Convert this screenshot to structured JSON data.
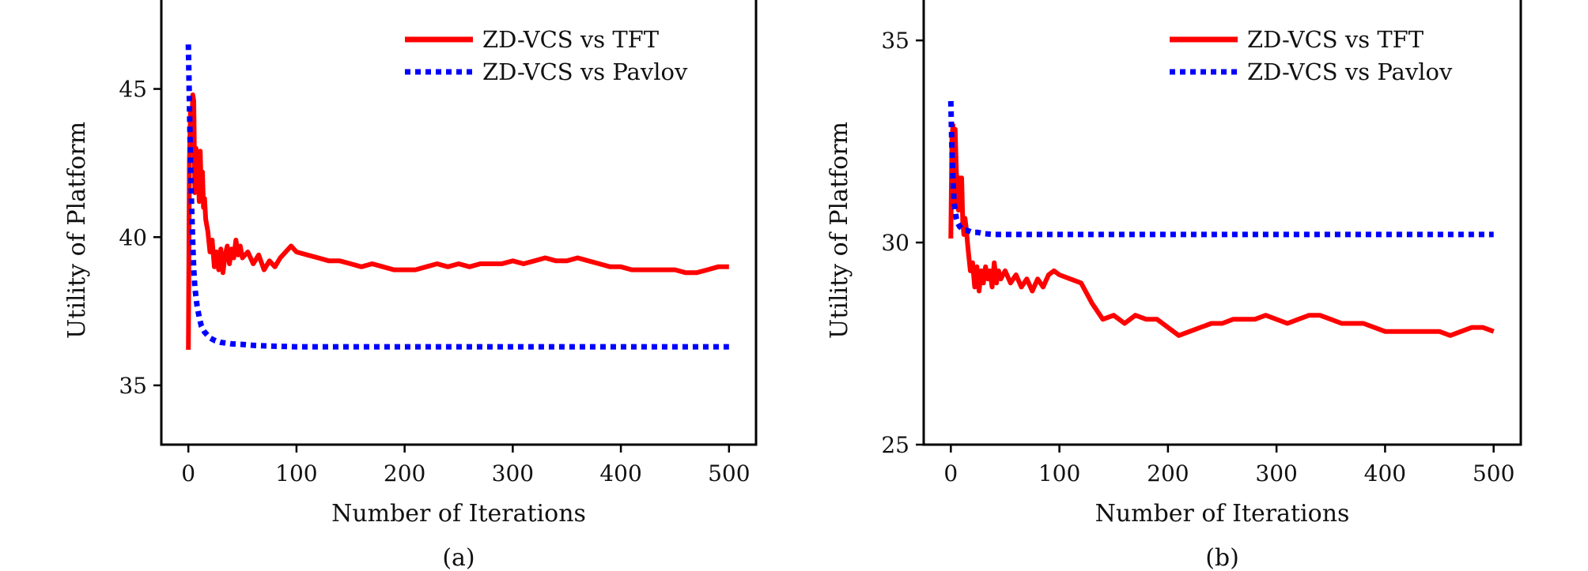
{
  "chart_data": [
    {
      "type": "line",
      "panel_label": "(a)",
      "xlabel": "Number of Iterations",
      "ylabel": "Utility of Platform",
      "xlim": [
        -25,
        525
      ],
      "ylim": [
        33,
        48
      ],
      "xticks": [
        0,
        100,
        200,
        300,
        400,
        500
      ],
      "yticks": [
        35,
        40,
        45
      ],
      "grid": false,
      "legend_position": "top-right",
      "series": [
        {
          "name": "ZD-VCS vs TFT",
          "color": "#ff0000",
          "style": "solid",
          "x": [
            0,
            1,
            2,
            3,
            4,
            5,
            6,
            7,
            8,
            9,
            10,
            11,
            12,
            13,
            14,
            15,
            16,
            18,
            20,
            22,
            24,
            26,
            28,
            30,
            32,
            34,
            36,
            38,
            40,
            42,
            44,
            46,
            48,
            50,
            55,
            60,
            65,
            70,
            75,
            80,
            85,
            90,
            95,
            100,
            110,
            120,
            130,
            140,
            150,
            160,
            170,
            180,
            190,
            200,
            210,
            220,
            230,
            240,
            250,
            260,
            270,
            280,
            290,
            300,
            310,
            320,
            330,
            340,
            350,
            360,
            370,
            380,
            390,
            400,
            410,
            420,
            430,
            440,
            450,
            460,
            470,
            480,
            490,
            500
          ],
          "y": [
            36.2,
            42.5,
            44.3,
            43.3,
            44.8,
            44.6,
            41.5,
            43.0,
            42.0,
            42.6,
            41.2,
            42.9,
            41.4,
            42.2,
            41.0,
            41.3,
            40.6,
            40.2,
            39.5,
            39.9,
            39.0,
            39.5,
            38.9,
            39.6,
            38.8,
            39.4,
            39.7,
            39.1,
            39.6,
            39.3,
            39.9,
            39.4,
            39.7,
            39.3,
            39.5,
            39.1,
            39.4,
            38.9,
            39.2,
            39.0,
            39.3,
            39.5,
            39.7,
            39.5,
            39.4,
            39.3,
            39.2,
            39.2,
            39.1,
            39.0,
            39.1,
            39.0,
            38.9,
            38.9,
            38.9,
            39.0,
            39.1,
            39.0,
            39.1,
            39.0,
            39.1,
            39.1,
            39.1,
            39.2,
            39.1,
            39.2,
            39.3,
            39.2,
            39.2,
            39.3,
            39.2,
            39.1,
            39.0,
            39.0,
            38.9,
            38.9,
            38.9,
            38.9,
            38.9,
            38.8,
            38.8,
            38.9,
            39.0,
            39.0
          ]
        },
        {
          "name": "ZD-VCS vs Pavlov",
          "color": "#0000ff",
          "style": "dotted",
          "x": [
            0,
            1,
            2,
            3,
            4,
            5,
            6,
            8,
            10,
            12,
            15,
            20,
            25,
            30,
            40,
            50,
            60,
            80,
            100,
            150,
            200,
            300,
            400,
            500
          ],
          "y": [
            46.5,
            44.5,
            42.5,
            41.0,
            39.8,
            38.9,
            38.3,
            37.7,
            37.3,
            37.0,
            36.8,
            36.6,
            36.5,
            36.45,
            36.4,
            36.38,
            36.35,
            36.32,
            36.3,
            36.3,
            36.3,
            36.3,
            36.3,
            36.3
          ]
        }
      ]
    },
    {
      "type": "line",
      "panel_label": "(b)",
      "xlabel": "Number of Iterations",
      "ylabel": "Utility of Platform",
      "xlim": [
        -25,
        525
      ],
      "ylim": [
        25,
        36
      ],
      "xticks": [
        0,
        100,
        200,
        300,
        400,
        500
      ],
      "yticks": [
        25,
        30,
        35
      ],
      "grid": false,
      "legend_position": "top-right",
      "series": [
        {
          "name": "ZD-VCS vs TFT",
          "color": "#ff0000",
          "style": "solid",
          "x": [
            0,
            1,
            2,
            3,
            4,
            5,
            6,
            7,
            8,
            9,
            10,
            11,
            12,
            13,
            14,
            16,
            18,
            20,
            22,
            24,
            26,
            28,
            30,
            32,
            34,
            36,
            38,
            40,
            42,
            44,
            46,
            48,
            50,
            55,
            60,
            65,
            70,
            75,
            80,
            85,
            90,
            95,
            100,
            110,
            120,
            130,
            140,
            150,
            160,
            170,
            180,
            190,
            200,
            210,
            220,
            230,
            240,
            250,
            260,
            270,
            280,
            290,
            300,
            310,
            320,
            330,
            340,
            350,
            360,
            370,
            380,
            390,
            400,
            410,
            420,
            430,
            440,
            450,
            460,
            470,
            480,
            490,
            500
          ],
          "y": [
            30.1,
            32.6,
            32.9,
            31.0,
            32.8,
            31.8,
            31.2,
            30.8,
            31.6,
            30.9,
            31.6,
            30.5,
            30.2,
            30.6,
            30.4,
            29.8,
            29.3,
            29.5,
            28.9,
            29.4,
            28.8,
            29.3,
            29.0,
            29.4,
            29.1,
            29.3,
            28.9,
            29.5,
            29.0,
            29.3,
            29.1,
            29.2,
            29.3,
            29.0,
            29.2,
            28.9,
            29.1,
            28.8,
            29.1,
            28.9,
            29.2,
            29.3,
            29.2,
            29.1,
            29.0,
            28.5,
            28.1,
            28.2,
            28.0,
            28.2,
            28.1,
            28.1,
            27.9,
            27.7,
            27.8,
            27.9,
            28.0,
            28.0,
            28.1,
            28.1,
            28.1,
            28.2,
            28.1,
            28.0,
            28.1,
            28.2,
            28.2,
            28.1,
            28.0,
            28.0,
            28.0,
            27.9,
            27.8,
            27.8,
            27.8,
            27.8,
            27.8,
            27.8,
            27.7,
            27.8,
            27.9,
            27.9,
            27.8
          ]
        },
        {
          "name": "ZD-VCS vs Pavlov",
          "color": "#0000ff",
          "style": "dotted",
          "x": [
            0,
            1,
            2,
            3,
            4,
            5,
            6,
            8,
            10,
            12,
            15,
            20,
            25,
            30,
            40,
            60,
            100,
            200,
            300,
            400,
            500
          ],
          "y": [
            33.5,
            32.3,
            31.5,
            31.0,
            30.8,
            30.6,
            30.5,
            30.4,
            30.35,
            30.3,
            30.3,
            30.25,
            30.25,
            30.22,
            30.2,
            30.2,
            30.2,
            30.2,
            30.2,
            30.2,
            30.2
          ]
        }
      ]
    }
  ]
}
